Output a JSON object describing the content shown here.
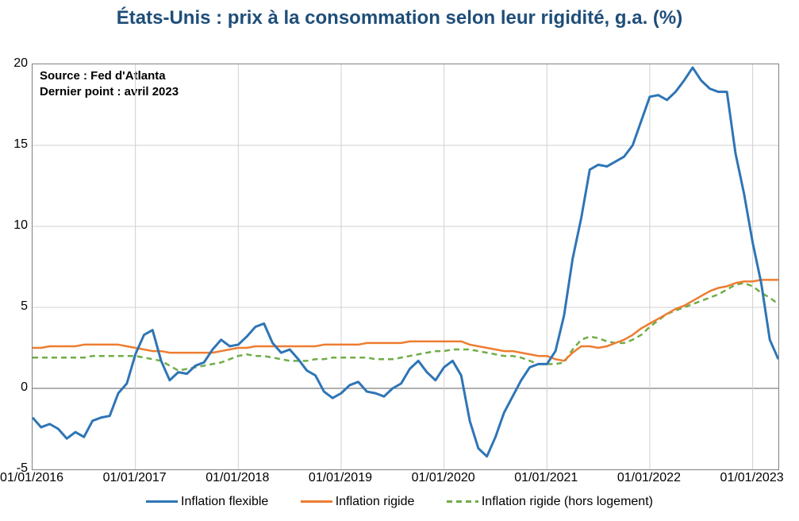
{
  "chart": {
    "type": "line",
    "title": "États-Unis : prix à la consommation selon leur rigidité, g.a. (%)",
    "title_color": "#1f4e79",
    "title_fontsize": 24,
    "source_line1": "Source : Fed d'Atlanta",
    "source_line2": "Dernier point : avril 2023",
    "source_fontsize": 15,
    "background_color": "#ffffff",
    "border_color": "#808080",
    "grid_color": "#d0d0d0",
    "axis_label_fontsize": 16,
    "ylim": [
      -5,
      20
    ],
    "ytick_step": 5,
    "y_ticks": [
      -5,
      0,
      5,
      10,
      15,
      20
    ],
    "x_labels": [
      "01/01/2016",
      "01/01/2017",
      "01/01/2018",
      "01/01/2019",
      "01/01/2020",
      "01/01/2021",
      "01/01/2022",
      "01/01/2023"
    ],
    "x_count": 88,
    "x_grid_indices": [
      0,
      12,
      24,
      36,
      48,
      60,
      72,
      84
    ],
    "legend": {
      "flexible": "Inflation flexible",
      "sticky": "Inflation rigide",
      "sticky_ex_housing": "Inflation rigide (hors logement)"
    },
    "series": {
      "flexible": {
        "color": "#2e75b6",
        "stroke_width": 3,
        "dash": "none",
        "data": [
          -1.8,
          -2.4,
          -2.2,
          -2.5,
          -3.1,
          -2.7,
          -3.0,
          -2.0,
          -1.8,
          -1.7,
          -0.3,
          0.3,
          2.1,
          3.3,
          3.6,
          1.7,
          0.5,
          1.0,
          0.9,
          1.4,
          1.6,
          2.4,
          3.0,
          2.6,
          2.7,
          3.2,
          3.8,
          4.0,
          2.8,
          2.2,
          2.4,
          1.8,
          1.1,
          0.8,
          -0.2,
          -0.6,
          -0.3,
          0.2,
          0.4,
          -0.2,
          -0.3,
          -0.5,
          0.0,
          0.3,
          1.2,
          1.7,
          1.0,
          0.5,
          1.3,
          1.7,
          0.8,
          -2.0,
          -3.7,
          -4.2,
          -3.0,
          -1.5,
          -0.5,
          0.5,
          1.3,
          1.5,
          1.5,
          2.3,
          4.5,
          8.0,
          10.5,
          13.5,
          13.8,
          13.7,
          14.0,
          14.3,
          15.0,
          16.5,
          18.0,
          18.1,
          17.8,
          18.3,
          19.0,
          19.8,
          19.0,
          18.5,
          18.3,
          18.3,
          14.5,
          12.0,
          9.0,
          6.5,
          3.0,
          1.8
        ]
      },
      "sticky": {
        "color": "#ed7d31",
        "stroke_width": 2.5,
        "dash": "none",
        "data": [
          2.5,
          2.5,
          2.6,
          2.6,
          2.6,
          2.6,
          2.7,
          2.7,
          2.7,
          2.7,
          2.7,
          2.6,
          2.5,
          2.4,
          2.3,
          2.3,
          2.2,
          2.2,
          2.2,
          2.2,
          2.2,
          2.2,
          2.3,
          2.4,
          2.5,
          2.5,
          2.6,
          2.6,
          2.6,
          2.6,
          2.6,
          2.6,
          2.6,
          2.6,
          2.7,
          2.7,
          2.7,
          2.7,
          2.7,
          2.8,
          2.8,
          2.8,
          2.8,
          2.8,
          2.9,
          2.9,
          2.9,
          2.9,
          2.9,
          2.9,
          2.9,
          2.7,
          2.6,
          2.5,
          2.4,
          2.3,
          2.3,
          2.2,
          2.1,
          2.0,
          2.0,
          1.8,
          1.7,
          2.2,
          2.6,
          2.6,
          2.5,
          2.6,
          2.8,
          3.0,
          3.3,
          3.7,
          4.0,
          4.3,
          4.6,
          4.9,
          5.1,
          5.4,
          5.7,
          6.0,
          6.2,
          6.3,
          6.5,
          6.6,
          6.6,
          6.7,
          6.7,
          6.7
        ]
      },
      "sticky_ex_housing": {
        "color": "#70ad47",
        "stroke_width": 2.5,
        "dash": "7 5",
        "data": [
          1.9,
          1.9,
          1.9,
          1.9,
          1.9,
          1.9,
          1.9,
          2.0,
          2.0,
          2.0,
          2.0,
          2.0,
          2.0,
          1.9,
          1.8,
          1.7,
          1.4,
          1.1,
          1.2,
          1.3,
          1.4,
          1.5,
          1.6,
          1.8,
          2.0,
          2.1,
          2.0,
          2.0,
          1.9,
          1.8,
          1.7,
          1.7,
          1.7,
          1.8,
          1.8,
          1.9,
          1.9,
          1.9,
          1.9,
          1.9,
          1.8,
          1.8,
          1.8,
          1.9,
          2.0,
          2.1,
          2.2,
          2.3,
          2.3,
          2.4,
          2.4,
          2.4,
          2.3,
          2.2,
          2.1,
          2.0,
          2.0,
          1.9,
          1.7,
          1.5,
          1.5,
          1.5,
          1.6,
          2.4,
          3.0,
          3.2,
          3.1,
          2.9,
          2.8,
          2.8,
          3.0,
          3.3,
          3.8,
          4.2,
          4.6,
          4.8,
          5.0,
          5.2,
          5.4,
          5.6,
          5.8,
          6.1,
          6.4,
          6.5,
          6.3,
          5.9,
          5.6,
          5.2
        ]
      }
    }
  }
}
